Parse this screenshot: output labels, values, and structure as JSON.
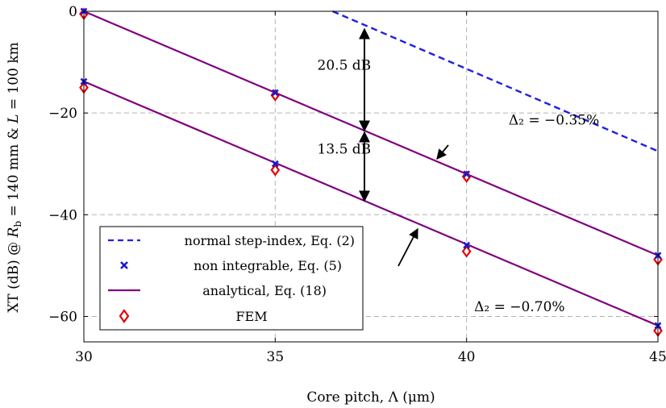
{
  "chart_data": {
    "type": "line",
    "xlabel": "Core pitch, Λ (μm)",
    "ylabel": "XT (dB) @ R_b = 140 mm & L = 100 km",
    "xlim": [
      30,
      45
    ],
    "ylim": [
      -65,
      0
    ],
    "xticks": [
      30,
      35,
      40,
      45
    ],
    "yticks": [
      0,
      -20,
      -40,
      -60
    ],
    "ytick_labels": [
      "0",
      "−20",
      "−40",
      "−60"
    ],
    "grid": true,
    "legend_position": "bottom-left",
    "colors": {
      "step_index": "#1f1fe6",
      "non_integrable": "#1a1acc",
      "analytical": "#800080",
      "fem": "#e60000"
    },
    "series": [
      {
        "name": "normal step-index, Eq. (2)",
        "style": "dashed",
        "x": [
          36.5,
          45
        ],
        "y": [
          0,
          -27.5
        ]
      },
      {
        "name": "non integrable, Eq. (5)",
        "style": "marker-x",
        "x": [
          30,
          35,
          40,
          45,
          30,
          35,
          40,
          45
        ],
        "y": [
          0,
          -16,
          -32,
          -48,
          -13.8,
          -30,
          -46,
          -61.8
        ]
      },
      {
        "name": "analytical, Eq. (18)",
        "style": "solid",
        "lines": [
          {
            "x": [
              30,
              45
            ],
            "y": [
              0,
              -48
            ]
          },
          {
            "x": [
              30,
              45
            ],
            "y": [
              -13.8,
              -61.8
            ]
          }
        ]
      },
      {
        "name": "FEM",
        "style": "marker-diamond",
        "x": [
          30,
          35,
          40,
          45,
          30,
          35,
          40,
          45
        ],
        "y": [
          -0.5,
          -16.5,
          -32.5,
          -48.8,
          -15,
          -31.2,
          -47.2,
          -62.8
        ]
      }
    ],
    "annotations": [
      {
        "text": "20.5 dB",
        "x": 36.1,
        "y": -11.5
      },
      {
        "text": "13.5 dB",
        "x": 36.1,
        "y": -28
      },
      {
        "text": "Δ₂ = −0.35%",
        "x": 41.1,
        "y": -22.3
      },
      {
        "text": "Δ₂ = −0.70%",
        "x": 40.2,
        "y": -59
      }
    ]
  }
}
